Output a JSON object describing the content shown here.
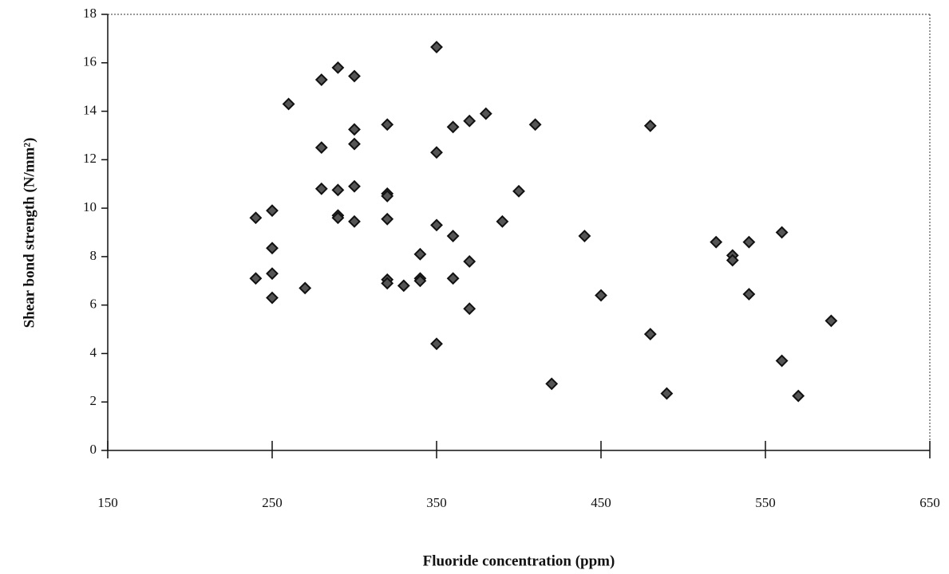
{
  "chart_data": {
    "type": "scatter",
    "x_label": "Fluoride concentration (ppm)",
    "y_label": "Shear bond strength (N/mm²)",
    "x": [
      240,
      240,
      250,
      250,
      250,
      250,
      270,
      260,
      280,
      280,
      280,
      290,
      290,
      290,
      290,
      300,
      300,
      300,
      300,
      300,
      320,
      320,
      320,
      320,
      320,
      320,
      330,
      340,
      340,
      340,
      350,
      350,
      350,
      350,
      360,
      360,
      360,
      370,
      370,
      370,
      380,
      390,
      400,
      410,
      420,
      440,
      450,
      480,
      480,
      490,
      520,
      530,
      530,
      540,
      540,
      560,
      560,
      570,
      590
    ],
    "values": [
      9.6,
      7.1,
      9.9,
      8.35,
      7.3,
      6.3,
      6.7,
      14.3,
      15.3,
      12.5,
      10.8,
      15.8,
      10.75,
      9.7,
      9.6,
      15.45,
      13.25,
      12.65,
      10.9,
      9.45,
      13.45,
      10.6,
      10.5,
      9.55,
      7.05,
      6.9,
      6.8,
      8.1,
      7.1,
      7.0,
      16.65,
      12.3,
      9.3,
      4.4,
      13.35,
      8.85,
      7.1,
      13.6,
      7.8,
      5.85,
      13.9,
      9.45,
      10.7,
      13.45,
      2.75,
      8.85,
      6.4,
      13.4,
      4.8,
      2.35,
      8.6,
      8.05,
      7.85,
      8.6,
      6.45,
      9.0,
      3.7,
      2.25,
      5.35
    ],
    "color": "#555555",
    "xlim": [
      150,
      650
    ],
    "ylim": [
      0,
      18
    ],
    "xticks": [
      150,
      250,
      350,
      450,
      550,
      650
    ],
    "yticks": [
      0,
      2,
      4,
      6,
      8,
      10,
      12,
      14,
      16,
      18
    ]
  }
}
